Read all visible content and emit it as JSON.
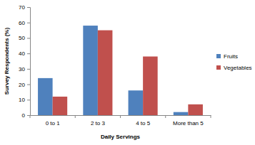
{
  "chart_data": {
    "type": "bar",
    "categories": [
      "0 to 1",
      "2 to 3",
      "4 to 5",
      "More than 5"
    ],
    "series": [
      {
        "name": "Fruits",
        "color": "#4f81bd",
        "values": [
          24,
          58,
          16,
          2
        ]
      },
      {
        "name": "Vegetables",
        "color": "#c0504d",
        "values": [
          12,
          55,
          38,
          7
        ]
      }
    ],
    "x_label": "Daily Servings",
    "y_label": "Survey Respondents (%)",
    "ylim": [
      0,
      70
    ],
    "yticks": [
      0,
      10,
      20,
      30,
      40,
      50,
      60,
      70
    ],
    "grid": false,
    "legend": "right"
  }
}
